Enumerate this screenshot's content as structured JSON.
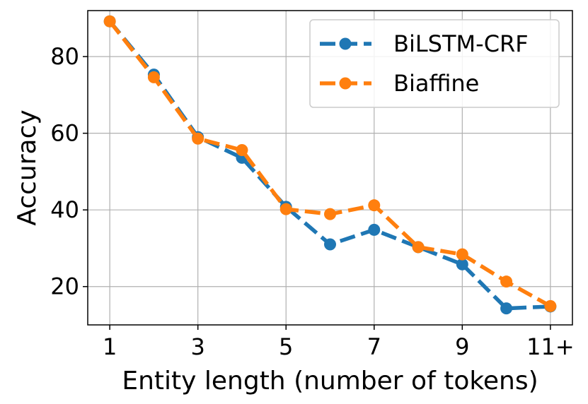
{
  "chart_data": {
    "type": "line",
    "xlabel": "Entity length (number of tokens)",
    "ylabel": "Accuracy",
    "x": [
      1,
      2,
      3,
      4,
      5,
      6,
      7,
      8,
      9,
      10,
      11
    ],
    "xticks": [
      1,
      3,
      5,
      7,
      9,
      11
    ],
    "xtick_labels": [
      "1",
      "3",
      "5",
      "7",
      "9",
      "11+"
    ],
    "xlim": [
      0.5,
      11.5
    ],
    "yticks": [
      20,
      40,
      60,
      80
    ],
    "ylim": [
      10,
      92
    ],
    "grid": true,
    "legend_position": "top-right",
    "series": [
      {
        "name": "BiLSTM-CRF",
        "color": "#1f77b4",
        "values": [
          89.2,
          75.3,
          59.0,
          53.6,
          40.8,
          31.0,
          34.8,
          30.3,
          25.8,
          14.3,
          14.8
        ]
      },
      {
        "name": "Biaffine",
        "color": "#ff7f0e",
        "values": [
          89.2,
          74.6,
          58.6,
          55.6,
          40.2,
          38.9,
          41.2,
          30.3,
          28.4,
          21.3,
          14.9
        ]
      }
    ]
  }
}
